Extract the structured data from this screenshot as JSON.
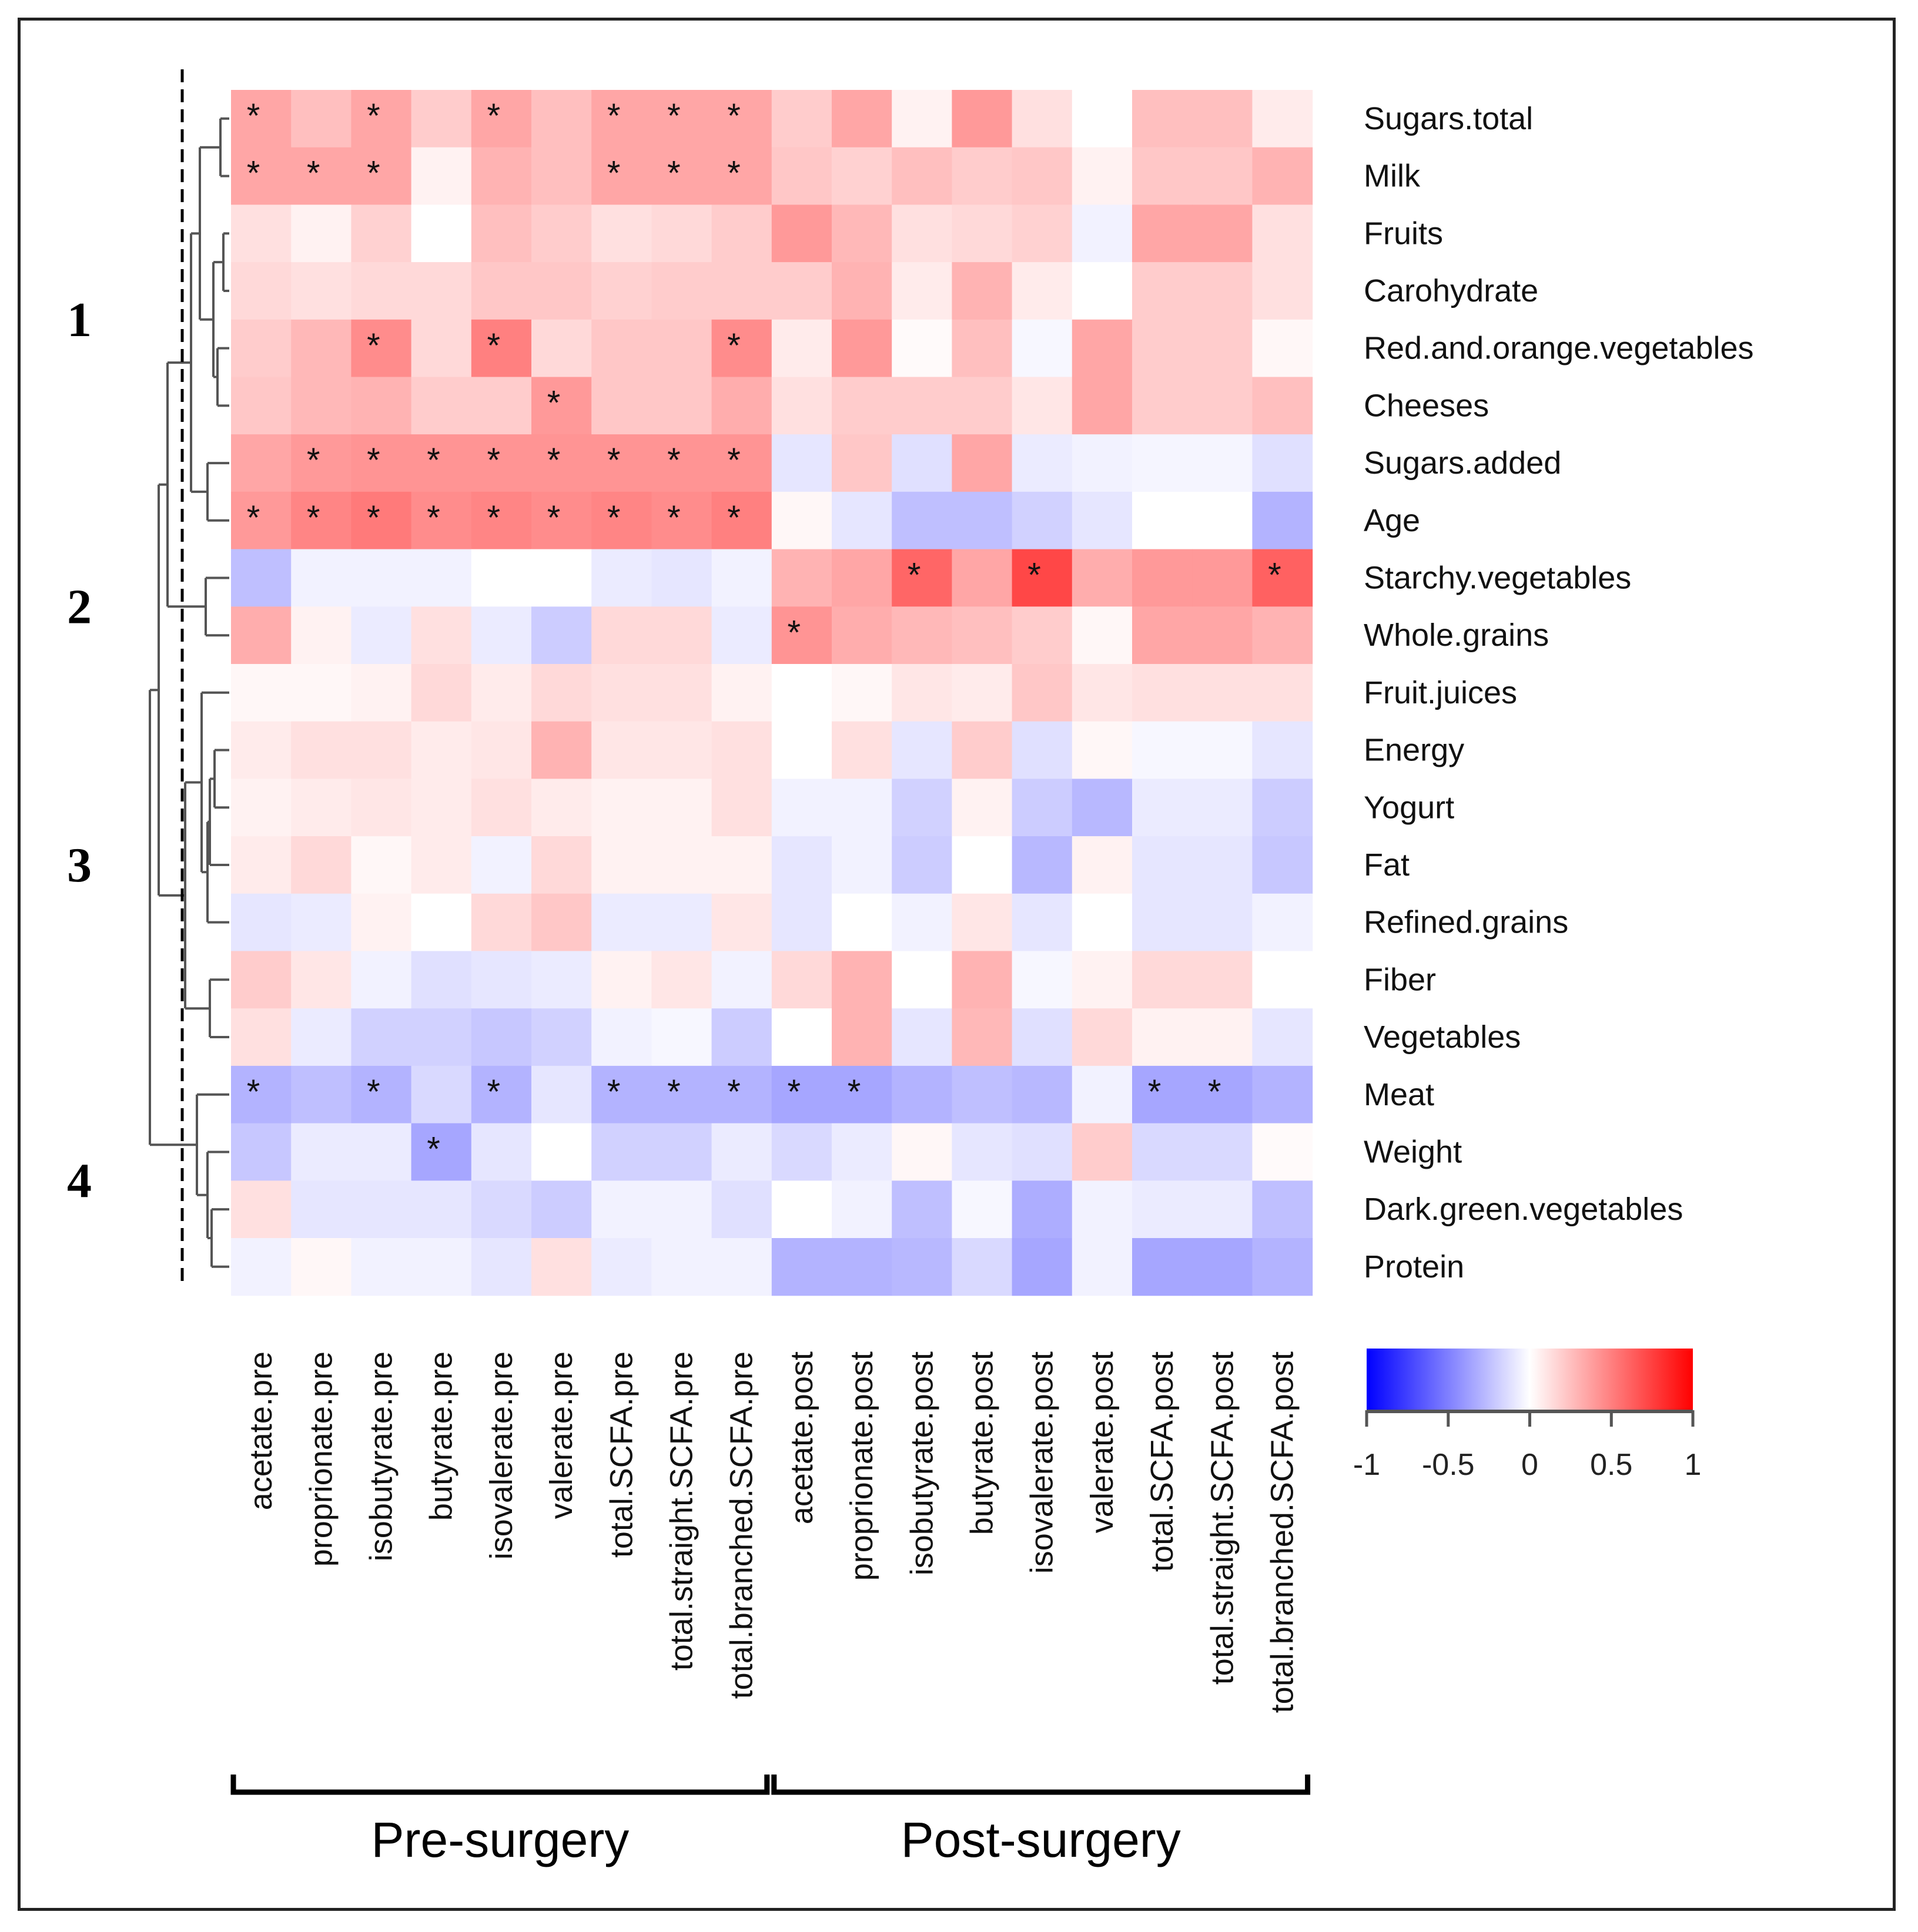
{
  "chart_data": {
    "type": "heatmap",
    "title": "",
    "rows": [
      "Sugars.total",
      "Milk",
      "Fruits",
      "Carohydrate",
      "Red.and.orange.vegetables",
      "Cheeses",
      "Sugars.added",
      "Age",
      "Starchy.vegetables",
      "Whole.grains",
      "Fruit.juices",
      "Energy",
      "Yogurt",
      "Fat",
      "Refined.grains",
      "Fiber",
      "Vegetables",
      "Meat",
      "Weight",
      "Dark.green.vegetables",
      "Protein"
    ],
    "columns": [
      "acetate.pre",
      "proprionate.pre",
      "isobutyrate.pre",
      "butyrate.pre",
      "isovalerate.pre",
      "valerate.pre",
      "total.SCFA.pre",
      "total.straight.SCFA.pre",
      "total.branched.SCFA.pre",
      "acetate.post",
      "proprionate.post",
      "isobutyrate.post",
      "butyrate.post",
      "isovalerate.post",
      "valerate.post",
      "total.SCFA.post",
      "total.straight.SCFA.post",
      "total.branched.SCFA.post"
    ],
    "values": [
      [
        0.35,
        0.25,
        0.35,
        0.2,
        0.35,
        0.25,
        0.35,
        0.35,
        0.35,
        0.2,
        0.35,
        0.05,
        0.4,
        0.12,
        0.0,
        0.25,
        0.25,
        0.08
      ],
      [
        0.35,
        0.35,
        0.35,
        0.05,
        0.3,
        0.25,
        0.35,
        0.35,
        0.35,
        0.22,
        0.18,
        0.25,
        0.2,
        0.22,
        0.05,
        0.22,
        0.22,
        0.3
      ],
      [
        0.12,
        0.05,
        0.18,
        0.0,
        0.25,
        0.2,
        0.12,
        0.15,
        0.2,
        0.4,
        0.28,
        0.12,
        0.15,
        0.18,
        -0.05,
        0.35,
        0.35,
        0.12
      ],
      [
        0.15,
        0.12,
        0.15,
        0.15,
        0.22,
        0.22,
        0.18,
        0.2,
        0.2,
        0.2,
        0.3,
        0.08,
        0.3,
        0.08,
        0.0,
        0.2,
        0.2,
        0.12
      ],
      [
        0.2,
        0.28,
        0.45,
        0.15,
        0.5,
        0.15,
        0.22,
        0.22,
        0.45,
        0.08,
        0.4,
        0.02,
        0.25,
        -0.03,
        0.35,
        0.2,
        0.2,
        0.03
      ],
      [
        0.22,
        0.28,
        0.3,
        0.2,
        0.2,
        0.4,
        0.22,
        0.22,
        0.32,
        0.12,
        0.2,
        0.2,
        0.2,
        0.1,
        0.35,
        0.2,
        0.2,
        0.25
      ],
      [
        0.35,
        0.4,
        0.42,
        0.42,
        0.42,
        0.42,
        0.42,
        0.42,
        0.42,
        -0.1,
        0.22,
        -0.12,
        0.35,
        -0.08,
        -0.05,
        -0.04,
        -0.04,
        -0.12
      ],
      [
        0.4,
        0.48,
        0.52,
        0.45,
        0.48,
        0.45,
        0.48,
        0.45,
        0.5,
        0.03,
        -0.1,
        -0.25,
        -0.25,
        -0.18,
        -0.1,
        0.0,
        0.0,
        -0.3
      ],
      [
        -0.25,
        -0.05,
        -0.05,
        -0.05,
        0.0,
        0.0,
        -0.08,
        -0.1,
        -0.05,
        0.3,
        0.35,
        0.6,
        0.35,
        0.72,
        0.32,
        0.4,
        0.4,
        0.62
      ],
      [
        0.32,
        0.05,
        -0.08,
        0.12,
        -0.08,
        -0.2,
        0.15,
        0.15,
        -0.08,
        0.42,
        0.32,
        0.28,
        0.25,
        0.2,
        0.03,
        0.35,
        0.35,
        0.3
      ],
      [
        0.03,
        0.03,
        0.05,
        0.15,
        0.08,
        0.15,
        0.12,
        0.12,
        0.05,
        0.0,
        0.03,
        0.1,
        0.08,
        0.22,
        0.1,
        0.12,
        0.12,
        0.12
      ],
      [
        0.08,
        0.12,
        0.12,
        0.08,
        0.1,
        0.3,
        0.1,
        0.1,
        0.12,
        0.0,
        0.12,
        -0.1,
        0.2,
        -0.12,
        0.03,
        -0.03,
        -0.03,
        -0.1
      ],
      [
        0.05,
        0.08,
        0.1,
        0.08,
        0.12,
        0.08,
        0.05,
        0.05,
        0.12,
        -0.05,
        -0.05,
        -0.18,
        0.05,
        -0.2,
        -0.28,
        -0.08,
        -0.08,
        -0.2
      ],
      [
        0.08,
        0.15,
        0.03,
        0.08,
        -0.05,
        0.15,
        0.05,
        0.05,
        0.05,
        -0.1,
        -0.05,
        -0.2,
        0.0,
        -0.28,
        0.05,
        -0.1,
        -0.1,
        -0.22
      ],
      [
        -0.1,
        -0.08,
        0.05,
        0.0,
        0.15,
        0.22,
        -0.08,
        -0.08,
        0.1,
        -0.1,
        0.0,
        -0.05,
        0.1,
        -0.1,
        0.0,
        -0.1,
        -0.1,
        -0.05
      ],
      [
        0.2,
        0.1,
        -0.05,
        -0.12,
        -0.1,
        -0.08,
        0.05,
        0.1,
        -0.05,
        0.15,
        0.3,
        0.0,
        0.3,
        -0.03,
        0.05,
        0.15,
        0.15,
        0.0
      ],
      [
        0.12,
        -0.08,
        -0.18,
        -0.18,
        -0.22,
        -0.18,
        -0.05,
        -0.03,
        -0.2,
        0.0,
        0.3,
        -0.1,
        0.28,
        -0.12,
        0.15,
        0.05,
        0.05,
        -0.1
      ],
      [
        -0.3,
        -0.25,
        -0.3,
        -0.15,
        -0.3,
        -0.1,
        -0.3,
        -0.3,
        -0.3,
        -0.35,
        -0.35,
        -0.3,
        -0.25,
        -0.28,
        -0.05,
        -0.35,
        -0.35,
        -0.3
      ],
      [
        -0.22,
        -0.08,
        -0.08,
        -0.35,
        -0.1,
        0.0,
        -0.18,
        -0.18,
        -0.08,
        -0.15,
        -0.08,
        0.03,
        -0.1,
        -0.12,
        0.2,
        -0.15,
        -0.15,
        0.02
      ],
      [
        0.12,
        -0.1,
        -0.1,
        -0.1,
        -0.15,
        -0.2,
        -0.05,
        -0.05,
        -0.12,
        0.0,
        -0.05,
        -0.25,
        -0.03,
        -0.32,
        -0.05,
        -0.08,
        -0.08,
        -0.25
      ],
      [
        -0.05,
        0.03,
        -0.05,
        -0.05,
        -0.1,
        0.12,
        -0.08,
        -0.05,
        -0.05,
        -0.3,
        -0.3,
        -0.28,
        -0.15,
        -0.35,
        -0.05,
        -0.35,
        -0.35,
        -0.3
      ]
    ],
    "significant": [
      [
        0,
        0
      ],
      [
        0,
        2
      ],
      [
        0,
        4
      ],
      [
        0,
        6
      ],
      [
        0,
        7
      ],
      [
        0,
        8
      ],
      [
        1,
        0
      ],
      [
        1,
        1
      ],
      [
        1,
        2
      ],
      [
        1,
        6
      ],
      [
        1,
        7
      ],
      [
        1,
        8
      ],
      [
        4,
        2
      ],
      [
        4,
        4
      ],
      [
        4,
        8
      ],
      [
        5,
        5
      ],
      [
        6,
        1
      ],
      [
        6,
        2
      ],
      [
        6,
        3
      ],
      [
        6,
        4
      ],
      [
        6,
        5
      ],
      [
        6,
        6
      ],
      [
        6,
        7
      ],
      [
        6,
        8
      ],
      [
        7,
        0
      ],
      [
        7,
        1
      ],
      [
        7,
        2
      ],
      [
        7,
        3
      ],
      [
        7,
        4
      ],
      [
        7,
        5
      ],
      [
        7,
        6
      ],
      [
        7,
        7
      ],
      [
        7,
        8
      ],
      [
        8,
        11
      ],
      [
        8,
        13
      ],
      [
        8,
        17
      ],
      [
        9,
        9
      ],
      [
        17,
        0
      ],
      [
        17,
        2
      ],
      [
        17,
        4
      ],
      [
        17,
        6
      ],
      [
        17,
        7
      ],
      [
        17,
        8
      ],
      [
        17,
        9
      ],
      [
        17,
        10
      ],
      [
        17,
        15
      ],
      [
        17,
        16
      ],
      [
        18,
        3
      ]
    ],
    "significance_marker": "*",
    "clusters": [
      {
        "label": "1",
        "first_row": 0,
        "last_row": 7
      },
      {
        "label": "2",
        "first_row": 8,
        "last_row": 9
      },
      {
        "label": "3",
        "first_row": 10,
        "last_row": 16
      },
      {
        "label": "4",
        "first_row": 17,
        "last_row": 20
      }
    ],
    "groups": [
      {
        "label": "Pre-surgery",
        "first_col": 0,
        "last_col": 8
      },
      {
        "label": "Post-surgery",
        "first_col": 9,
        "last_col": 17
      }
    ],
    "colorbar": {
      "min": -1,
      "max": 1,
      "ticks": [
        "-1",
        "-0.5",
        "0",
        "0.5",
        "1"
      ],
      "color_low": "#0000ff",
      "color_mid": "#ffffff",
      "color_high": "#ff0000"
    }
  }
}
